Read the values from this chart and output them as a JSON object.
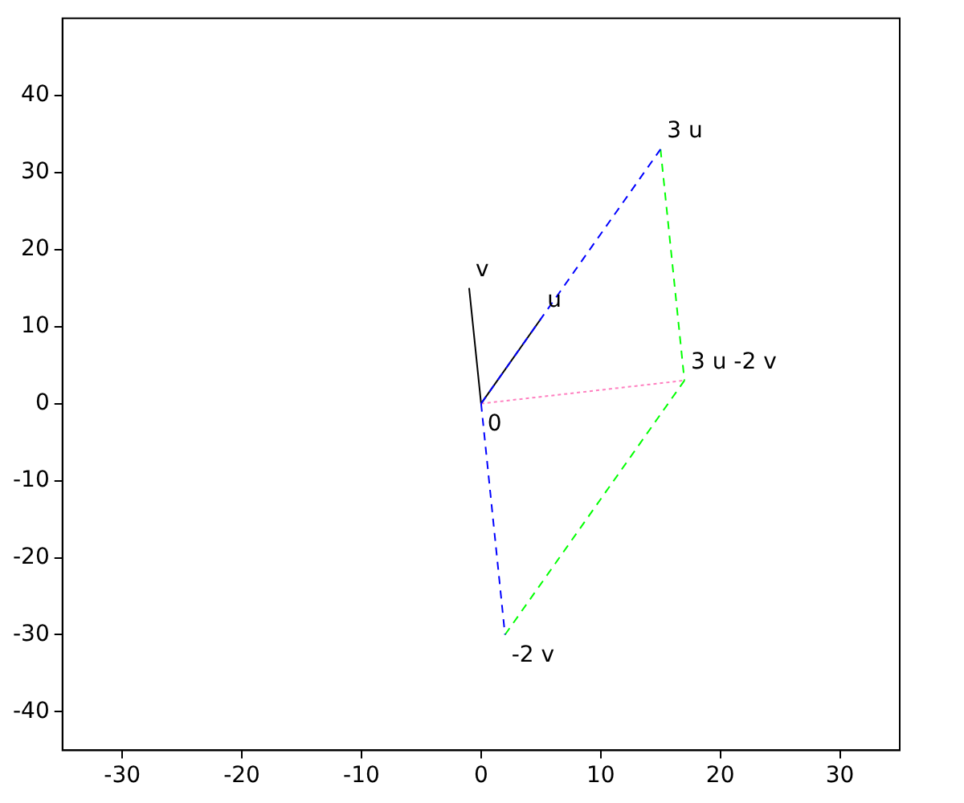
{
  "chart_data": {
    "type": "line",
    "xlim": [
      -35,
      35
    ],
    "xticks": [
      -30,
      -20,
      -10,
      0,
      10,
      20,
      30
    ],
    "ylim": [
      -45,
      50
    ],
    "yticks": [
      -40,
      -30,
      -20,
      -10,
      0,
      10,
      20,
      30,
      40
    ],
    "grid": false,
    "legend": false,
    "marker": "none",
    "series": [
      {
        "color": "#0000ff",
        "line_style": "dashed",
        "x": [
          0,
          15
        ],
        "values": [
          0,
          33
        ]
      },
      {
        "color": "#0000ff",
        "line_style": "dashed",
        "x": [
          0,
          2
        ],
        "values": [
          0,
          -30
        ]
      },
      {
        "color": "#00ff00",
        "line_style": "dashed",
        "x": [
          2,
          17,
          null,
          15,
          17
        ],
        "values": [
          -30,
          3,
          null,
          33,
          3
        ]
      },
      {
        "color": "#ff80c0",
        "line_style": "dotted",
        "x": [
          0,
          17
        ],
        "values": [
          0,
          3
        ]
      },
      {
        "color": "#000000",
        "line_style": "solid",
        "x": [
          0,
          5
        ],
        "values": [
          0,
          11
        ]
      },
      {
        "color": "#000000",
        "line_style": "solid",
        "x": [
          0,
          -1
        ],
        "values": [
          0,
          15
        ]
      }
    ],
    "annotations": [
      {
        "text": "u",
        "x": 5,
        "y": 11
      },
      {
        "text": "v",
        "x": -1,
        "y": 15
      },
      {
        "text": "3 u",
        "x": 15,
        "y": 33
      },
      {
        "text": "3 u -2 v",
        "x": 17,
        "y": 3
      },
      {
        "text": "0",
        "x": 0,
        "y": 0
      },
      {
        "text": "-2 v",
        "x": 2,
        "y": -30
      }
    ]
  }
}
